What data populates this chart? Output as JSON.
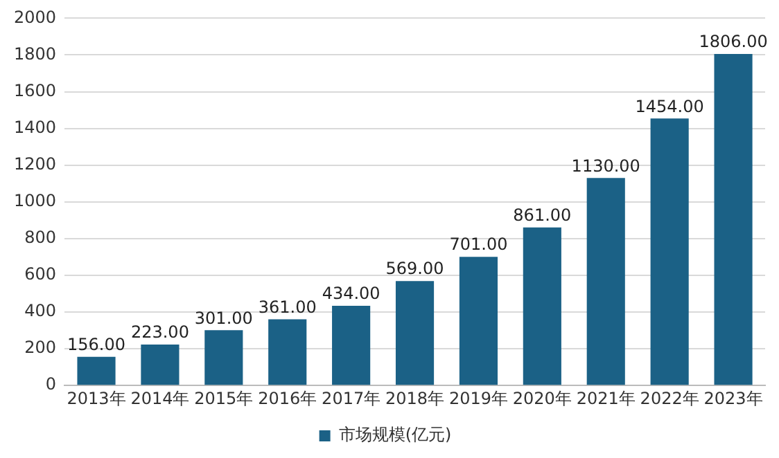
{
  "chart_data": {
    "type": "bar",
    "categories": [
      "2013年",
      "2014年",
      "2015年",
      "2016年",
      "2017年",
      "2018年",
      "2019年",
      "2020年",
      "2021年",
      "2022年",
      "2023年"
    ],
    "series": [
      {
        "name": "市场规模(亿元)",
        "color": "#1b6186",
        "values": [
          156,
          223,
          301,
          361,
          434,
          569,
          701,
          861,
          1130,
          1454,
          1806
        ]
      }
    ],
    "value_labels": [
      "156.00",
      "223.00",
      "301.00",
      "361.00",
      "434.00",
      "569.00",
      "701.00",
      "861.00",
      "1130.00",
      "1454.00",
      "1806.00"
    ],
    "ylim": [
      0,
      2000
    ],
    "yticks": [
      0,
      200,
      400,
      600,
      800,
      1000,
      1200,
      1400,
      1600,
      1800,
      2000
    ],
    "grid": "y",
    "legend": "bottom"
  }
}
